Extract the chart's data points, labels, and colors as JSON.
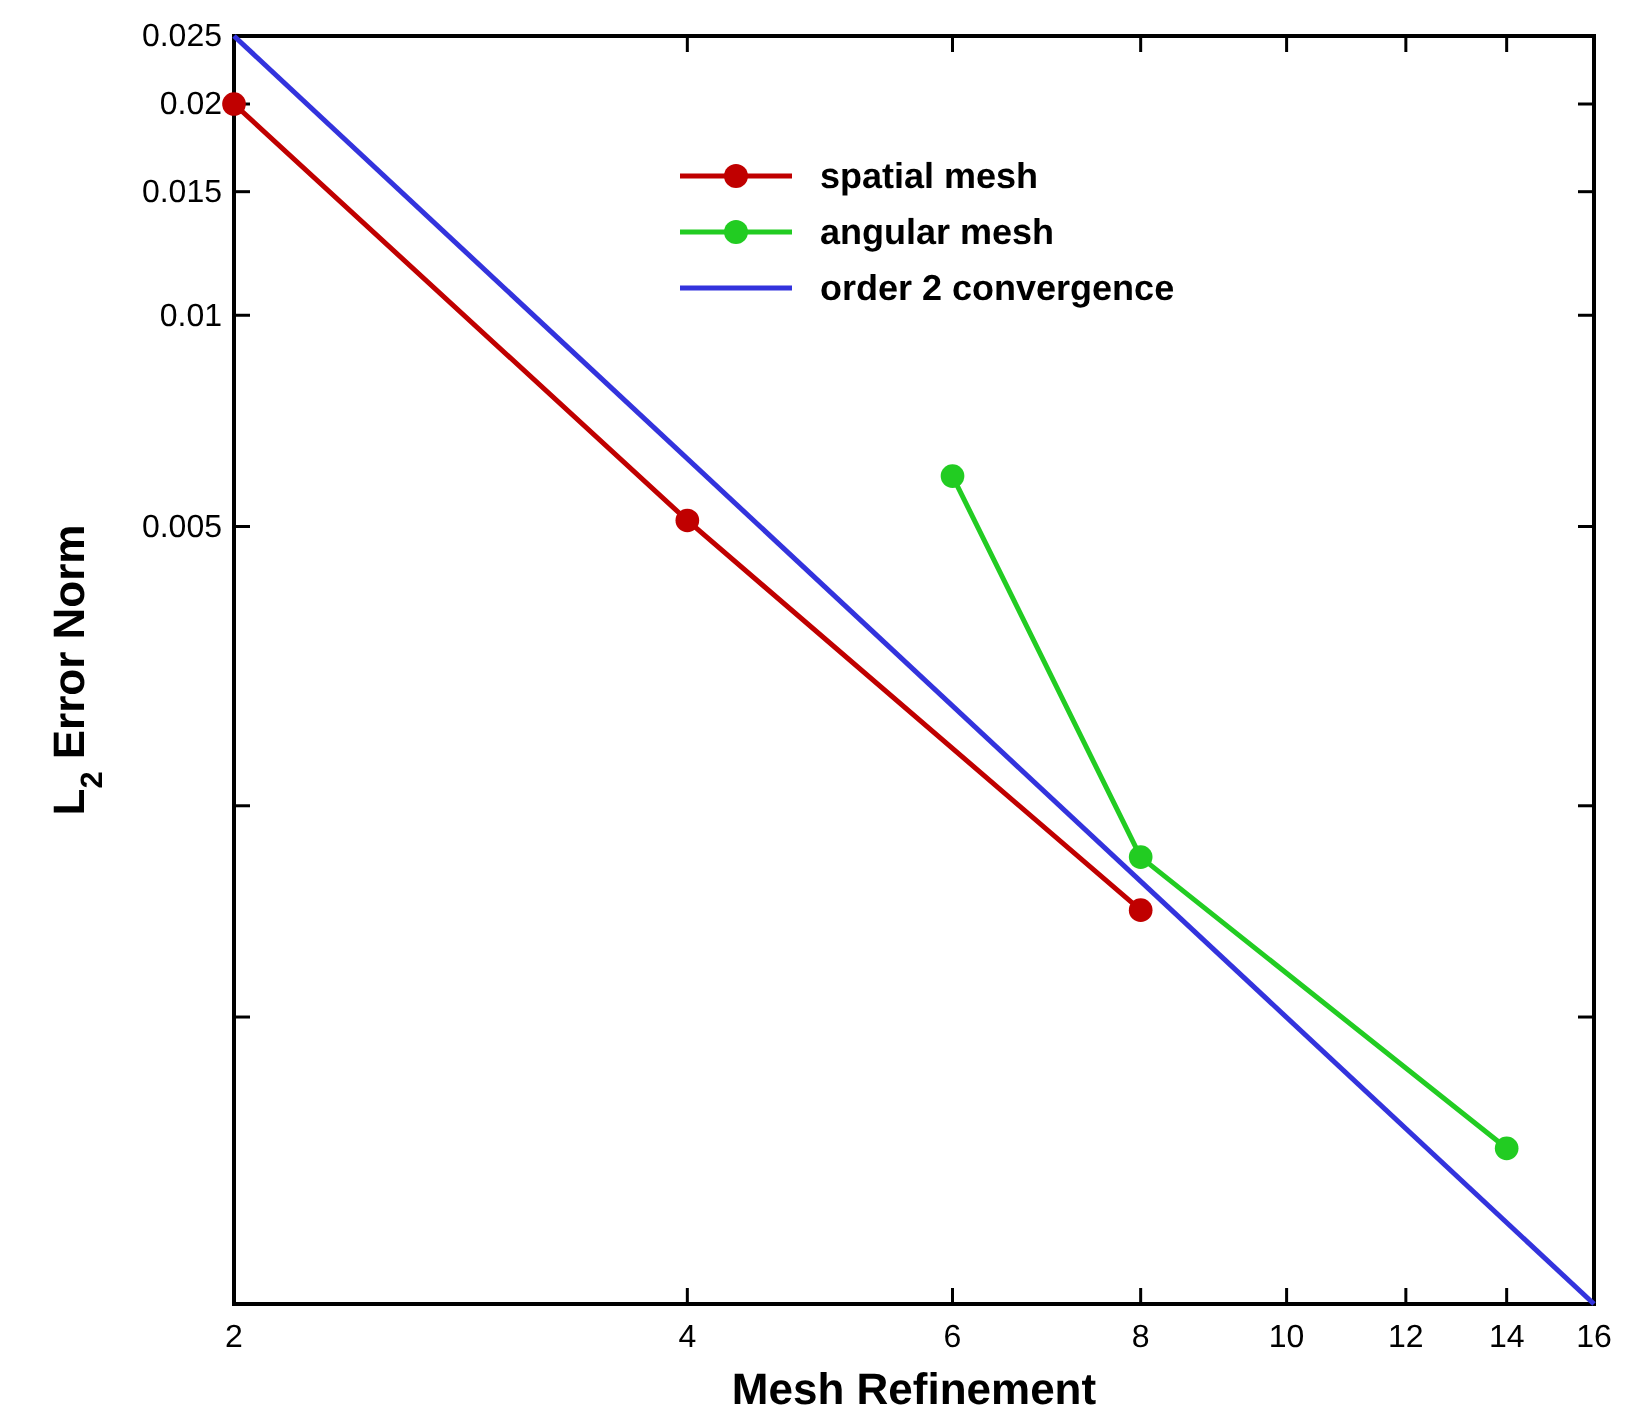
{
  "chart_data": {
    "type": "line",
    "xlabel": "Mesh Refinement",
    "ylabel": "L$_{2}$ Error Norm",
    "log": "xy",
    "xlim": [
      2,
      16
    ],
    "xticks": [
      2,
      4,
      6,
      8,
      10,
      12,
      14,
      16
    ],
    "ylim": [
      0.00039,
      0.025
    ],
    "yticks": [
      0.025,
      0.02,
      0.015,
      0.01,
      0.005,
      {
        "value": 0.002,
        "label": null
      },
      {
        "value": 0.001,
        "label": null
      }
    ],
    "legend": "top right",
    "marker": "circle",
    "grid": false,
    "series": [
      {
        "name": "spatial mesh",
        "color": "#c00000",
        "x": [
          2,
          4,
          8
        ],
        "values": [
          0.02,
          0.0051,
          0.00142
        ]
      },
      {
        "name": "angular mesh",
        "color": "#22cc22",
        "x": [
          6,
          8,
          14
        ],
        "values": [
          0.0059,
          0.00169,
          0.00065
        ]
      },
      {
        "name": "order 2 convergence",
        "color": "#3333dd",
        "x": [
          2,
          16
        ],
        "values": [
          0.025,
          0.00039
        ],
        "marker": "none"
      }
    ]
  }
}
